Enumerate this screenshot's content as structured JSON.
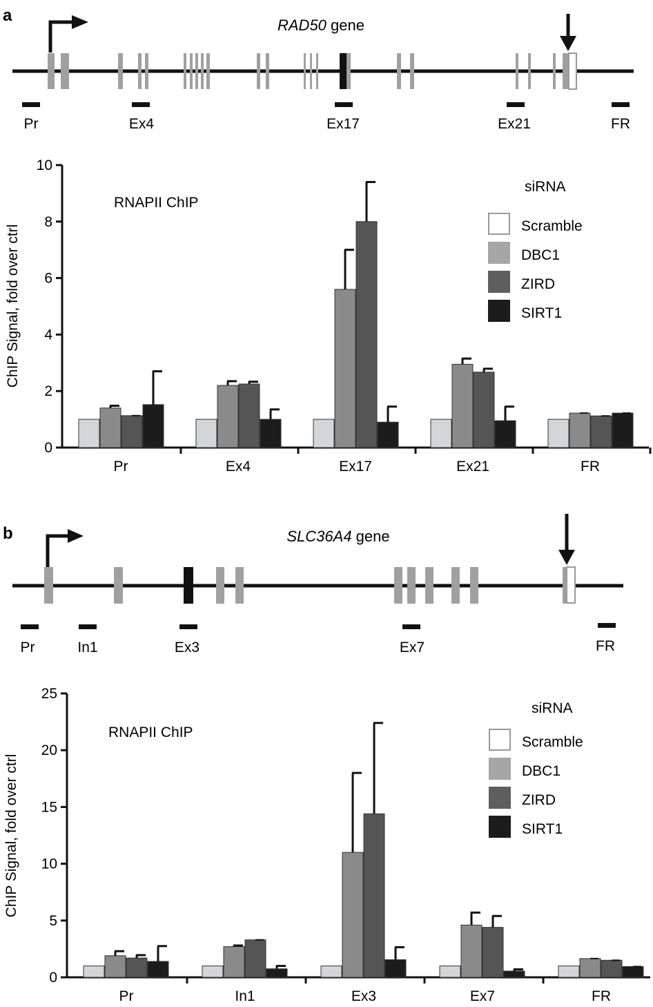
{
  "panels": [
    {
      "letter": "a",
      "gene_name": "RAD50",
      "gene_suffix": " gene",
      "regions": [
        "Pr",
        "Ex4",
        "Ex17",
        "Ex21",
        "FR"
      ]
    },
    {
      "letter": "b",
      "gene_name": "SLC36A4",
      "gene_suffix": " gene",
      "regions": [
        "Pr",
        "In1",
        "Ex3",
        "Ex7",
        "FR"
      ]
    }
  ],
  "legend": {
    "title": "siRNA",
    "entries": [
      {
        "label": "Scramble",
        "color": "#ffffff",
        "stroke": "#999999"
      },
      {
        "label": "DBC1",
        "color": "#a6a6a6",
        "stroke": "#a6a6a6"
      },
      {
        "label": "ZIRD",
        "color": "#5e5e5e",
        "stroke": "#5e5e5e"
      },
      {
        "label": "SIRT1",
        "color": "#1c1c1c",
        "stroke": "#1c1c1c"
      }
    ]
  },
  "bar_colors": [
    "#d3d5d8",
    "#8a8a8a",
    "#555555",
    "#1c1c1c"
  ],
  "chart_data": [
    {
      "type": "bar",
      "title": "RNAPII ChIP",
      "ylabel": "ChIP Signal, fold over ctrl",
      "xlabel": "",
      "ylim": [
        0,
        10
      ],
      "yticks": [
        0,
        2,
        4,
        6,
        8,
        10
      ],
      "categories": [
        "Pr",
        "Ex4",
        "Ex17",
        "Ex21",
        "FR"
      ],
      "series": [
        {
          "name": "Scramble",
          "values": [
            1,
            1,
            1,
            1,
            1
          ],
          "errors": [
            0,
            0,
            0,
            0,
            0
          ]
        },
        {
          "name": "DBC1",
          "values": [
            1.4,
            2.2,
            5.6,
            2.95,
            1.22
          ],
          "errors": [
            0.08,
            0.15,
            1.4,
            0.2,
            0.0
          ]
        },
        {
          "name": "ZIRD",
          "values": [
            1.13,
            2.25,
            8.0,
            2.67,
            1.12
          ],
          "errors": [
            0.0,
            0.08,
            1.4,
            0.12,
            0.0
          ]
        },
        {
          "name": "SIRT1",
          "values": [
            1.52,
            1.0,
            0.9,
            0.95,
            1.22
          ],
          "errors": [
            1.18,
            0.35,
            0.55,
            0.5,
            0.0
          ]
        }
      ],
      "legend_position": "top-right"
    },
    {
      "type": "bar",
      "title": "RNAPII ChIP",
      "ylabel": "ChIP Signal, fold over ctrl",
      "xlabel": "",
      "ylim": [
        0,
        25
      ],
      "yticks": [
        0,
        5,
        10,
        15,
        20,
        25
      ],
      "categories": [
        "Pr",
        "In1",
        "Ex3",
        "Ex7",
        "FR"
      ],
      "series": [
        {
          "name": "Scramble",
          "values": [
            1,
            1,
            1,
            1,
            1
          ],
          "errors": [
            0,
            0,
            0,
            0,
            0
          ]
        },
        {
          "name": "DBC1",
          "values": [
            1.9,
            2.7,
            11.0,
            4.6,
            1.65
          ],
          "errors": [
            0.4,
            0.1,
            7.0,
            1.1,
            0.0
          ]
        },
        {
          "name": "ZIRD",
          "values": [
            1.7,
            3.3,
            14.4,
            4.4,
            1.5
          ],
          "errors": [
            0.25,
            0.0,
            8.0,
            1.0,
            0.0
          ]
        },
        {
          "name": "SIRT1",
          "values": [
            1.4,
            0.75,
            1.55,
            0.55,
            0.95
          ],
          "errors": [
            1.35,
            0.25,
            1.1,
            0.15,
            0.0
          ]
        }
      ],
      "legend_position": "top-right"
    }
  ]
}
